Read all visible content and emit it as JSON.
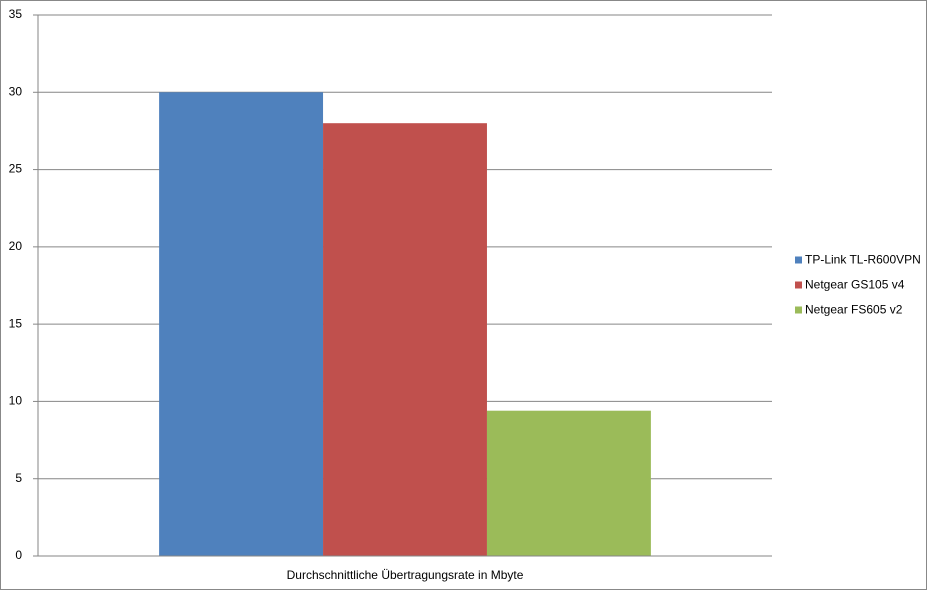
{
  "chart_data": {
    "type": "bar",
    "categories": [
      "Durchschnittliche Übertragungsrate in Mbyte"
    ],
    "series": [
      {
        "name": "TP-Link TL-R600VPN",
        "color": "#4f81bd",
        "values": [
          30
        ]
      },
      {
        "name": "Netgear GS105 v4",
        "color": "#c0504d",
        "values": [
          28
        ]
      },
      {
        "name": "Netgear FS605 v2",
        "color": "#9bbb59",
        "values": [
          9.4
        ]
      }
    ],
    "ylim": [
      0,
      35
    ],
    "yticks": [
      0,
      5,
      10,
      15,
      20,
      25,
      30,
      35
    ],
    "grid": true,
    "legend": "right"
  }
}
